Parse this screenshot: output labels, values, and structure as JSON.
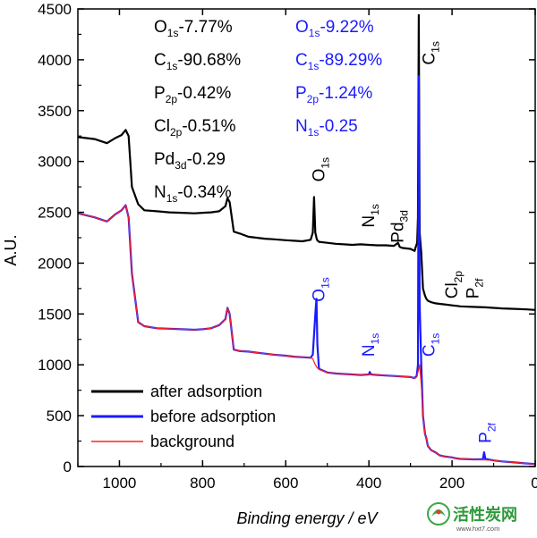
{
  "chart_data": {
    "type": "line",
    "xlabel": "Binding energy / eV",
    "ylabel": "A.U.",
    "xlim": [
      1100,
      0
    ],
    "ylim": [
      0,
      4500
    ],
    "x_ticks": [
      1000,
      800,
      600,
      400,
      200,
      0
    ],
    "y_ticks": [
      0,
      500,
      1000,
      1500,
      2000,
      2500,
      3000,
      3500,
      4000,
      4500
    ],
    "x_reversed": true,
    "grid": false,
    "legend_position": "bottom-left",
    "series": [
      {
        "name": "after adsorption",
        "color": "#000000",
        "x": [
          1100,
          1060,
          1030,
          1010,
          995,
          985,
          978,
          970,
          955,
          940,
          910,
          880,
          850,
          820,
          800,
          780,
          760,
          745,
          740,
          735,
          725,
          710,
          690,
          670,
          650,
          630,
          600,
          580,
          560,
          540,
          535,
          532,
          529,
          525,
          520,
          500,
          480,
          460,
          440,
          420,
          400,
          380,
          360,
          340,
          330,
          326,
          320,
          300,
          290,
          288,
          284,
          282,
          280,
          278,
          274,
          270,
          265,
          262,
          258,
          250,
          240,
          230,
          220,
          200,
          190,
          180,
          150,
          120,
          100,
          80,
          50,
          20,
          0
        ],
        "y": [
          3240,
          3220,
          3180,
          3230,
          3260,
          3310,
          3250,
          2750,
          2580,
          2520,
          2510,
          2500,
          2495,
          2490,
          2495,
          2500,
          2510,
          2560,
          2640,
          2600,
          2310,
          2290,
          2260,
          2250,
          2240,
          2235,
          2225,
          2220,
          2215,
          2230,
          2300,
          2650,
          2300,
          2230,
          2210,
          2200,
          2190,
          2185,
          2180,
          2185,
          2180,
          2175,
          2175,
          2170,
          2200,
          2160,
          2150,
          2140,
          2120,
          2150,
          2200,
          2450,
          4440,
          2300,
          2100,
          1750,
          1680,
          1650,
          1630,
          1615,
          1605,
          1600,
          1595,
          1585,
          1580,
          1575,
          1570,
          1565,
          1560,
          1555,
          1550,
          1545,
          1540
        ]
      },
      {
        "name": "before adsorption",
        "color": "#1a1aff",
        "x": [
          1100,
          1060,
          1030,
          1010,
          995,
          985,
          978,
          970,
          955,
          940,
          910,
          880,
          850,
          820,
          800,
          780,
          760,
          745,
          740,
          735,
          725,
          710,
          690,
          670,
          650,
          630,
          600,
          580,
          560,
          540,
          535,
          528,
          526,
          524,
          520,
          500,
          480,
          460,
          440,
          420,
          400,
          398,
          395,
          380,
          360,
          340,
          320,
          300,
          290,
          285,
          282,
          280,
          278,
          274,
          270,
          265,
          262,
          258,
          250,
          240,
          230,
          220,
          200,
          190,
          180,
          150,
          126,
          123,
          120,
          100,
          80,
          50,
          20,
          0
        ],
        "y": [
          2490,
          2450,
          2410,
          2480,
          2520,
          2570,
          2450,
          1900,
          1420,
          1380,
          1360,
          1355,
          1350,
          1345,
          1350,
          1360,
          1390,
          1450,
          1560,
          1500,
          1150,
          1135,
          1130,
          1120,
          1110,
          1100,
          1090,
          1080,
          1075,
          1070,
          1100,
          1550,
          1650,
          1200,
          960,
          925,
          915,
          910,
          905,
          900,
          905,
          930,
          905,
          900,
          895,
          890,
          885,
          880,
          870,
          890,
          1000,
          3840,
          1600,
          1000,
          500,
          320,
          280,
          200,
          160,
          140,
          110,
          100,
          90,
          80,
          75,
          70,
          70,
          140,
          75,
          60,
          50,
          40,
          30,
          25
        ]
      },
      {
        "name": "background",
        "color": "#ff2020",
        "x": [
          1100,
          1060,
          1030,
          1010,
          995,
          985,
          978,
          970,
          955,
          940,
          910,
          880,
          850,
          820,
          800,
          780,
          760,
          745,
          740,
          735,
          725,
          710,
          690,
          670,
          650,
          630,
          600,
          580,
          560,
          540,
          535,
          530,
          525,
          520,
          500,
          480,
          460,
          440,
          420,
          400,
          380,
          360,
          340,
          320,
          300,
          290,
          285,
          280,
          278,
          274,
          270,
          265,
          262,
          258,
          250,
          240,
          230,
          220,
          200,
          190,
          180,
          150,
          120,
          100,
          80,
          50,
          20,
          0
        ],
        "y": [
          2490,
          2450,
          2410,
          2480,
          2520,
          2570,
          2450,
          1900,
          1420,
          1380,
          1360,
          1355,
          1350,
          1345,
          1350,
          1360,
          1390,
          1450,
          1560,
          1500,
          1150,
          1135,
          1130,
          1120,
          1110,
          1100,
          1090,
          1080,
          1075,
          1070,
          1060,
          1010,
          975,
          955,
          925,
          915,
          910,
          905,
          900,
          905,
          900,
          895,
          890,
          885,
          880,
          870,
          880,
          960,
          1000,
          800,
          500,
          320,
          280,
          200,
          160,
          140,
          110,
          100,
          90,
          80,
          75,
          70,
          65,
          60,
          50,
          40,
          30,
          25
        ]
      }
    ],
    "legend": [
      "after adsorption",
      "before adsorption",
      "background"
    ],
    "composition_after": [
      {
        "el": "O",
        "sub": "1s",
        "val": "-7.77%"
      },
      {
        "el": "C",
        "sub": "1s",
        "val": "-90.68%"
      },
      {
        "el": "P",
        "sub": "2p",
        "val": "-0.42%"
      },
      {
        "el": "Cl",
        "sub": "2p",
        "val": "-0.51%"
      },
      {
        "el": "Pd",
        "sub": "3d",
        "val": "-0.29"
      },
      {
        "el": "N",
        "sub": "1s",
        "val": "-0.34%"
      }
    ],
    "composition_before": [
      {
        "el": "O",
        "sub": "1s",
        "val": "-9.22%"
      },
      {
        "el": "C",
        "sub": "1s",
        "val": "-89.29%"
      },
      {
        "el": "P",
        "sub": "2p",
        "val": "-1.24%"
      },
      {
        "el": "N",
        "sub": "1s",
        "val": "-0.25"
      }
    ],
    "peak_labels_after": [
      {
        "el": "O",
        "sub": "1s",
        "x": 520,
        "y": 2800
      },
      {
        "el": "N",
        "sub": "1s",
        "x": 400,
        "y": 2350
      },
      {
        "el": "Pd",
        "sub": "3d",
        "x": 330,
        "y": 2200
      },
      {
        "el": "C",
        "sub": "1s",
        "x": 255,
        "y": 3950
      },
      {
        "el": "Cl",
        "sub": "2p",
        "x": 200,
        "y": 1650
      },
      {
        "el": "P",
        "sub": "2f",
        "x": 150,
        "y": 1650
      }
    ],
    "peak_labels_before": [
      {
        "el": "O",
        "sub": "1s",
        "x": 520,
        "y": 1620
      },
      {
        "el": "N",
        "sub": "1s",
        "x": 400,
        "y": 1080
      },
      {
        "el": "C",
        "sub": "1s",
        "x": 255,
        "y": 1080
      },
      {
        "el": "P",
        "sub": "2f",
        "x": 120,
        "y": 230
      }
    ]
  },
  "watermark": {
    "title": "活性炭网",
    "url": "www.hxt7.com"
  }
}
